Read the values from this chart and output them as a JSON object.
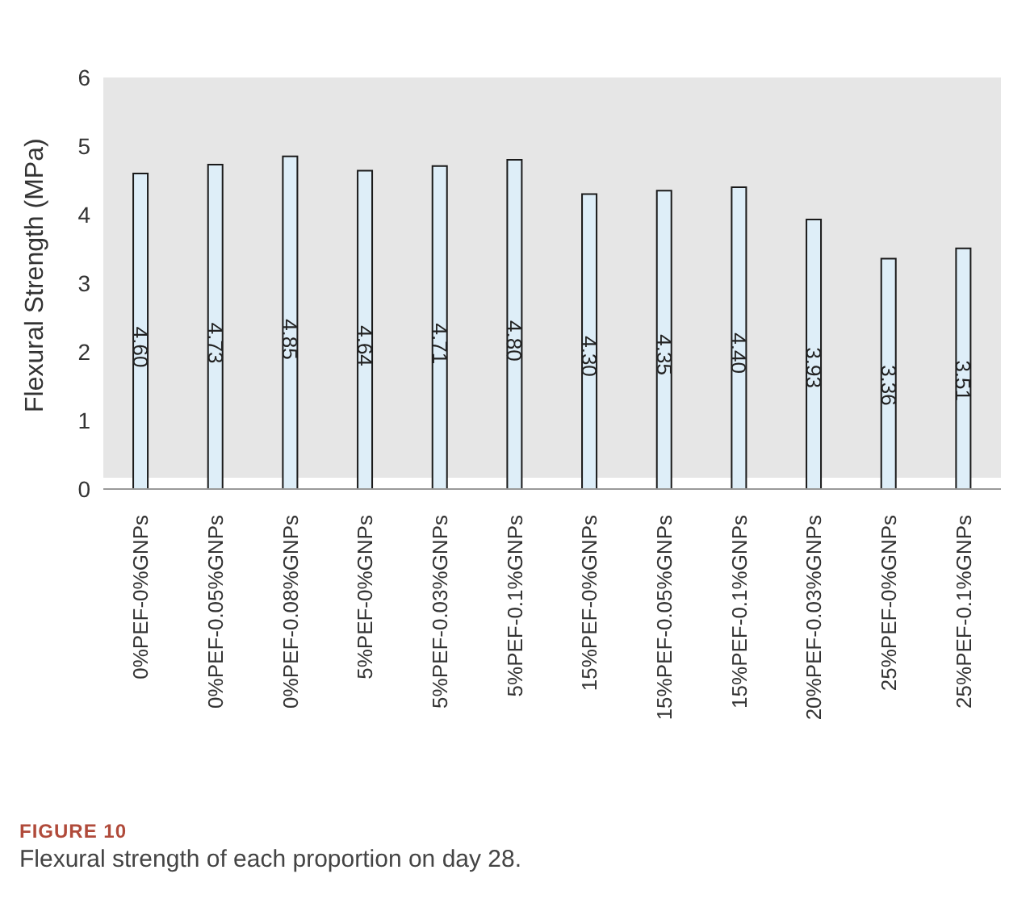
{
  "chart_data": {
    "type": "bar",
    "ylabel": "Flexural Strength (MPa)",
    "categories": [
      "0%PEF-0%GNPs",
      "0%PEF-0.05%GNPs",
      "0%PEF-0.08%GNPs",
      "5%PEF-0%GNPs",
      "5%PEF-0.03%GNPs",
      "5%PEF-0.1%GNPs",
      "15%PEF-0%GNPs",
      "15%PEF-0.05%GNPs",
      "15%PEF-0.1%GNPs",
      "20%PEF-0.03%GNPs",
      "25%PEF-0%GNPs",
      "25%PEF-0.1%GNPs"
    ],
    "values": [
      4.6,
      4.73,
      4.85,
      4.64,
      4.71,
      4.8,
      4.3,
      4.35,
      4.4,
      3.93,
      3.36,
      3.51
    ],
    "color": "#deeef8",
    "ylim": [
      0,
      6
    ],
    "yticks": [
      0,
      1,
      2,
      3,
      4,
      5,
      6
    ],
    "grid": false,
    "legend": false,
    "value_labels": [
      "4.60",
      "4.73",
      "4.85",
      "4.64",
      "4.71",
      "4.80",
      "4.30",
      "4.35",
      "4.40",
      "3.93",
      "3.36",
      "3.51"
    ],
    "annotations": [
      "FIGURE 10",
      "Flexural strength of each proportion on day 28."
    ]
  }
}
